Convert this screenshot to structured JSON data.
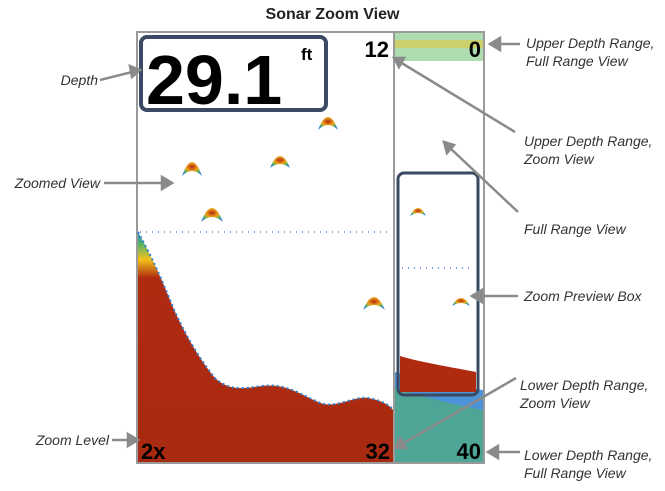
{
  "title": "Sonar Zoom View",
  "display": {
    "depth_value": "29.1",
    "depth_unit": "ft",
    "upper_zoom_depth": "12",
    "upper_full_depth": "0",
    "lower_zoom_depth": "32",
    "lower_full_depth": "40",
    "zoom_level": "2x"
  },
  "callouts": {
    "depth": "Depth",
    "zoomed_view": "Zoomed View",
    "zoom_level": "Zoom Level",
    "upper_full_line1": "Upper Depth Range,",
    "upper_full_line2": "Full Range View",
    "upper_zoom_line1": "Upper Depth Range,",
    "upper_zoom_line2": "Zoom View",
    "full_range_view": "Full Range View",
    "zoom_preview_box": "Zoom Preview Box",
    "lower_zoom_line1": "Lower Depth Range,",
    "lower_zoom_line2": "Zoom View",
    "lower_full_line1": "Lower Depth Range,",
    "lower_full_line2": "Full Range View"
  },
  "colors": {
    "frame": "#9a9a9a",
    "bottom_core": "#b02a10",
    "bottom_edge_yellow": "#f2c21a",
    "bottom_edge_green": "#4fb36a",
    "bottom_edge_blue": "#2f7fd0",
    "fish_arch": "#e0643a"
  }
}
